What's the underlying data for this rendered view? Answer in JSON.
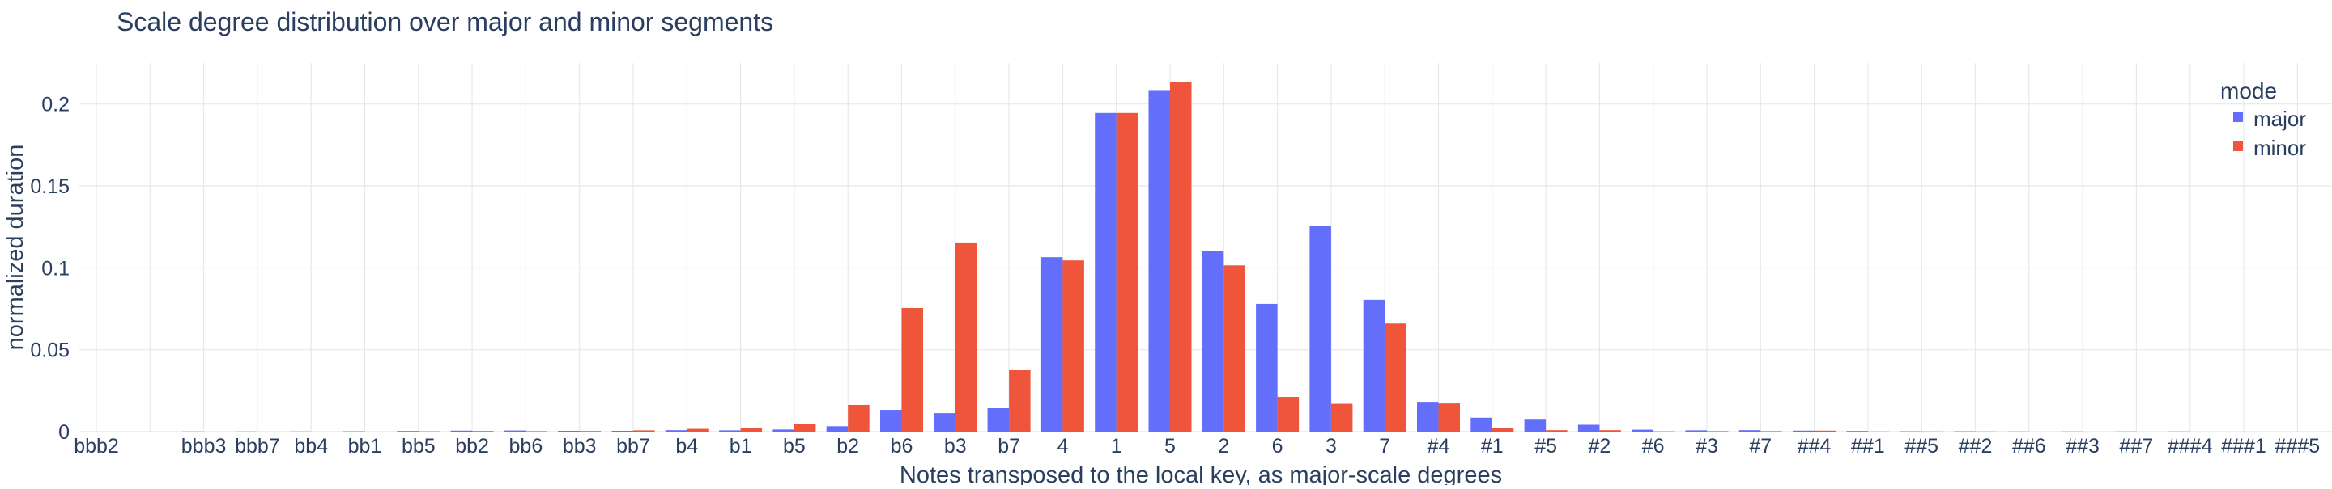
{
  "chart_data": {
    "type": "bar",
    "title": "Scale degree distribution over major and minor segments",
    "xlabel": "Notes transposed to the local key, as major-scale degrees",
    "ylabel": "normalized duration",
    "ylim": [
      0,
      0.225
    ],
    "yticks": [
      0,
      0.05,
      0.1,
      0.15,
      0.2
    ],
    "ytick_labels": [
      "0",
      "0.05",
      "0.1",
      "0.15",
      "0.2"
    ],
    "grid": true,
    "legend": {
      "title": "mode",
      "position": "top-right"
    },
    "categories": [
      "bbb2",
      "",
      "bbb3",
      "bbb7",
      "bb4",
      "bb1",
      "bb5",
      "bb2",
      "bb6",
      "bb3",
      "bb7",
      "b4",
      "b1",
      "b5",
      "b2",
      "b6",
      "b3",
      "b7",
      "4",
      "1",
      "5",
      "2",
      "6",
      "3",
      "7",
      "#4",
      "#1",
      "#5",
      "#2",
      "#6",
      "#3",
      "#7",
      "##4",
      "##1",
      "##5",
      "##2",
      "##6",
      "##3",
      "##7",
      "###4",
      "###1",
      "###5"
    ],
    "series": [
      {
        "name": "major",
        "color": "#636efa",
        "values": [
          0,
          0,
          0.0001,
          0.0001,
          0.0001,
          0.0002,
          0.0004,
          0.0006,
          0.0007,
          0.0005,
          0.0005,
          0.0009,
          0.0008,
          0.0013,
          0.0033,
          0.0133,
          0.0113,
          0.0143,
          0.1065,
          0.1945,
          0.2085,
          0.1105,
          0.078,
          0.1255,
          0.0805,
          0.0182,
          0.0085,
          0.0073,
          0.0042,
          0.0012,
          0.0008,
          0.0009,
          0.0006,
          0.0004,
          0.0002,
          0.0002,
          0.0001,
          0.0001,
          0.0001,
          0.0001,
          0,
          0
        ]
      },
      {
        "name": "minor",
        "color": "#ef553b",
        "values": [
          0,
          0,
          0,
          0,
          0,
          0,
          0.0002,
          0.0004,
          0.0003,
          0.0004,
          0.0008,
          0.0017,
          0.0022,
          0.0045,
          0.0163,
          0.0755,
          0.115,
          0.0375,
          0.1045,
          0.1945,
          0.2135,
          0.1015,
          0.0212,
          0.017,
          0.066,
          0.0172,
          0.0022,
          0.0009,
          0.0009,
          0.0002,
          0.0003,
          0.0003,
          0.0006,
          0.0001,
          0.0001,
          0.0001,
          0,
          0,
          0,
          0,
          0,
          0
        ]
      }
    ]
  }
}
